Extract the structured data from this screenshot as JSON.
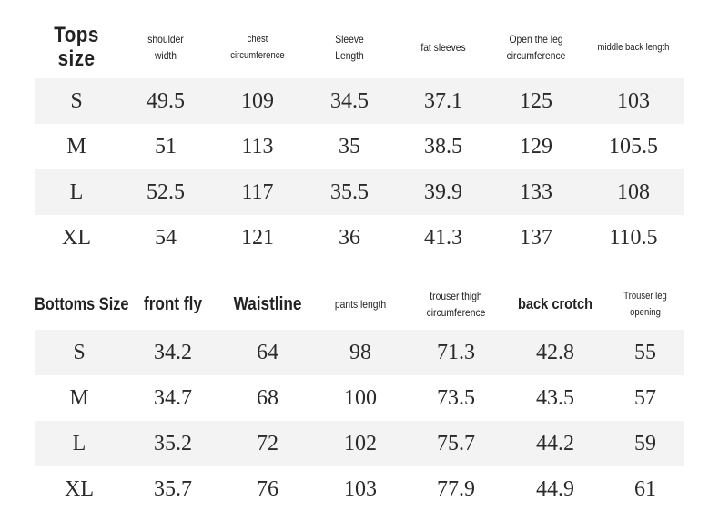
{
  "tops": {
    "title_line1": "Tops",
    "title_line2": "size",
    "headers": [
      {
        "line1": "shoulder",
        "line2": "width"
      },
      {
        "line1": "chest",
        "line2": "circumference"
      },
      {
        "line1": "Sleeve",
        "line2": "Length"
      },
      {
        "line1": "fat sleeves",
        "line2": ""
      },
      {
        "line1": "Open the leg",
        "line2": "circumference"
      },
      {
        "line1": "middle back length",
        "line2": ""
      }
    ],
    "rows": [
      [
        "S",
        "49.5",
        "109",
        "34.5",
        "37.1",
        "125",
        "103"
      ],
      [
        "M",
        "51",
        "113",
        "35",
        "38.5",
        "129",
        "105.5"
      ],
      [
        "L",
        "52.5",
        "117",
        "35.5",
        "39.9",
        "133",
        "108"
      ],
      [
        "XL",
        "54",
        "121",
        "36",
        "41.3",
        "137",
        "110.5"
      ]
    ]
  },
  "bottoms": {
    "title": "Bottoms Size",
    "headers": [
      {
        "line1": "front fly",
        "line2": ""
      },
      {
        "line1": "Waistline",
        "line2": ""
      },
      {
        "line1": "pants length",
        "line2": ""
      },
      {
        "line1": "trouser thigh",
        "line2": "circumference"
      },
      {
        "line1": "back crotch",
        "line2": ""
      },
      {
        "line1": "Trouser leg",
        "line2": "opening"
      }
    ],
    "rows": [
      [
        "S",
        "34.2",
        "64",
        "98",
        "71.3",
        "42.8",
        "55"
      ],
      [
        "M",
        "34.7",
        "68",
        "100",
        "73.5",
        "43.5",
        "57"
      ],
      [
        "L",
        "35.2",
        "72",
        "102",
        "75.7",
        "44.2",
        "59"
      ],
      [
        "XL",
        "35.7",
        "76",
        "103",
        "77.9",
        "44.9",
        "61"
      ]
    ]
  }
}
